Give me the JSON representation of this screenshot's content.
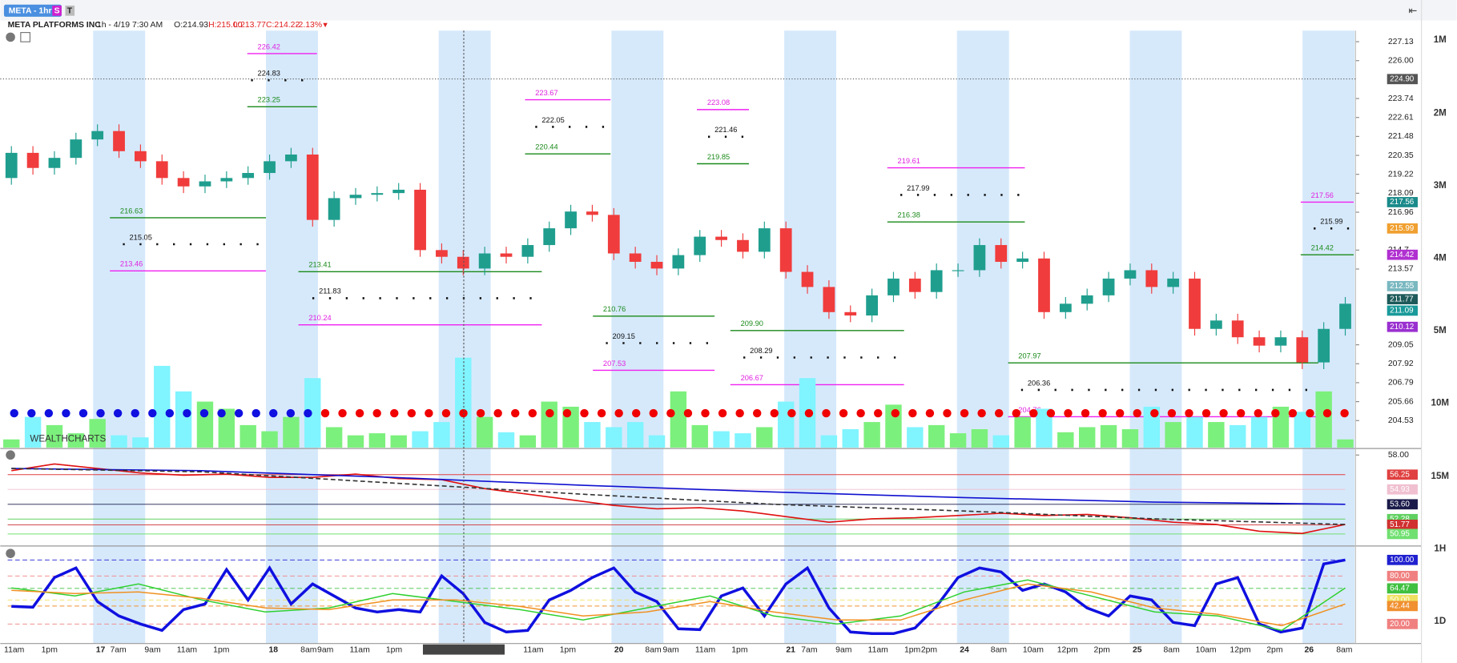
{
  "header": {
    "symbol": "META - 1hr",
    "badges": [
      "S",
      "T"
    ],
    "name": "META PLATFORMS INC",
    "interval": "1h - 4/19 7:30 AM",
    "open": "O:214.93",
    "high": "H:215.00",
    "low": "L:213.77",
    "close": "C:214.22",
    "change": "-2.13%"
  },
  "watermark": "WEALTHCHARTS",
  "timeframes": [
    "1M",
    "2M",
    "3M",
    "4M",
    "5M",
    "10M",
    "15M",
    "1H",
    "1D"
  ],
  "time_labels": [
    "11am",
    "1pm",
    "17",
    "7am",
    "9am",
    "11am",
    "1pm",
    "18",
    "8am",
    "9am",
    "11am",
    "1pm",
    "4/19/2023 7:30:00 AM",
    "11am",
    "1pm",
    "20",
    "8am",
    "9am",
    "11am",
    "1pm",
    "21",
    "7am",
    "9am",
    "11am",
    "1pm",
    "2pm",
    "24",
    "8am",
    "10am",
    "12pm",
    "2pm",
    "25",
    "8am",
    "10am",
    "12pm",
    "2pm",
    "26",
    "8am"
  ],
  "price": {
    "ylim": [
      202.92,
      227.79
    ],
    "yticks": [
      227.13,
      {
        "value": 226,
        "label": "226.00"
      },
      223.74,
      222.61,
      221.48,
      220.35,
      219.22,
      218.09,
      216.96,
      214.7,
      213.57,
      209.05,
      207.92,
      206.79,
      205.66,
      204.53
    ],
    "tags": [
      {
        "value": 224.9,
        "label": "224.90",
        "color": "#555555"
      },
      {
        "value": 217.56,
        "color": "#1a8a8a"
      },
      {
        "value": 215.99,
        "color": "#f0a030"
      },
      {
        "value": 214.42,
        "color": "#b030d0"
      },
      {
        "value": 212.55,
        "color": "#7ab8c0"
      },
      {
        "value": 211.77,
        "color": "#1e5a5a"
      },
      {
        "value": 211.09,
        "color": "#1a9a9a"
      },
      {
        "value": 210.12,
        "color": "#9a30d0"
      }
    ],
    "ohlc": [
      [
        219.0,
        220.9,
        218.6,
        220.5
      ],
      [
        220.5,
        220.9,
        219.2,
        219.6
      ],
      [
        219.6,
        220.6,
        219.2,
        220.2
      ],
      [
        220.2,
        221.7,
        219.8,
        221.3
      ],
      [
        221.3,
        222.2,
        220.9,
        221.8
      ],
      [
        221.8,
        222.2,
        220.2,
        220.6
      ],
      [
        220.6,
        221.0,
        219.6,
        220.0
      ],
      [
        220.0,
        220.4,
        218.6,
        219.0
      ],
      [
        219.0,
        219.4,
        218.1,
        218.5
      ],
      [
        218.5,
        219.2,
        218.1,
        218.8
      ],
      [
        218.8,
        219.4,
        218.4,
        219.0
      ],
      [
        219.0,
        219.7,
        218.6,
        219.3
      ],
      [
        219.3,
        220.4,
        218.9,
        220.0
      ],
      [
        220.0,
        220.8,
        219.6,
        220.4
      ],
      [
        220.4,
        220.8,
        216.1,
        216.5
      ],
      [
        216.5,
        218.2,
        216.1,
        217.8
      ],
      [
        217.8,
        218.4,
        217.4,
        218.0
      ],
      [
        218.0,
        218.5,
        217.6,
        218.1
      ],
      [
        218.1,
        218.7,
        217.7,
        218.3
      ],
      [
        218.3,
        218.7,
        214.3,
        214.7
      ],
      [
        214.7,
        215.1,
        213.9,
        214.3
      ],
      [
        214.3,
        214.7,
        213.2,
        213.6
      ],
      [
        213.6,
        214.9,
        213.2,
        214.5
      ],
      [
        214.5,
        214.9,
        213.9,
        214.3
      ],
      [
        214.3,
        215.4,
        213.9,
        215.0
      ],
      [
        215.0,
        216.4,
        214.6,
        216.0
      ],
      [
        216.0,
        217.4,
        215.6,
        217.0
      ],
      [
        217.0,
        217.4,
        216.4,
        216.8
      ],
      [
        216.8,
        217.2,
        214.1,
        214.5
      ],
      [
        214.5,
        214.9,
        213.6,
        214.0
      ],
      [
        214.0,
        214.4,
        213.2,
        213.6
      ],
      [
        213.6,
        214.8,
        213.2,
        214.4
      ],
      [
        214.4,
        215.9,
        214.0,
        215.5
      ],
      [
        215.5,
        215.9,
        214.9,
        215.3
      ],
      [
        215.3,
        215.7,
        214.2,
        214.6
      ],
      [
        214.6,
        216.4,
        214.2,
        216.0
      ],
      [
        216.0,
        216.4,
        213.0,
        213.4
      ],
      [
        213.4,
        213.8,
        212.1,
        212.5
      ],
      [
        212.5,
        212.9,
        210.6,
        211.0
      ],
      [
        211.0,
        211.4,
        210.4,
        210.8
      ],
      [
        210.8,
        212.4,
        210.4,
        212.0
      ],
      [
        212.0,
        213.4,
        211.6,
        213.0
      ],
      [
        213.0,
        213.4,
        211.8,
        212.2
      ],
      [
        212.2,
        213.9,
        211.8,
        213.5
      ],
      [
        213.5,
        213.9,
        213.1,
        213.5
      ],
      [
        213.5,
        215.4,
        213.1,
        215.0
      ],
      [
        215.0,
        215.4,
        213.6,
        214.0
      ],
      [
        214.0,
        214.6,
        213.6,
        214.2
      ],
      [
        214.2,
        214.6,
        210.6,
        211.0
      ],
      [
        211.0,
        211.9,
        210.6,
        211.5
      ],
      [
        211.5,
        212.4,
        211.1,
        212.0
      ],
      [
        212.0,
        213.4,
        211.6,
        213.0
      ],
      [
        213.0,
        213.9,
        212.6,
        213.5
      ],
      [
        213.5,
        213.9,
        212.1,
        212.5
      ],
      [
        212.5,
        213.4,
        212.1,
        213.0
      ],
      [
        213.0,
        213.4,
        209.6,
        210.0
      ],
      [
        210.0,
        210.9,
        209.6,
        210.5
      ],
      [
        210.5,
        210.9,
        209.1,
        209.5
      ],
      [
        209.5,
        209.9,
        208.6,
        209.0
      ],
      [
        209.0,
        209.9,
        208.6,
        209.5
      ],
      [
        209.5,
        209.9,
        207.6,
        208.0
      ],
      [
        208.0,
        210.4,
        207.6,
        210.0
      ],
      [
        210.0,
        211.9,
        209.6,
        211.5
      ]
    ],
    "volume": [
      8,
      30,
      22,
      14,
      28,
      12,
      10,
      80,
      55,
      45,
      38,
      22,
      16,
      30,
      68,
      20,
      12,
      14,
      12,
      16,
      25,
      88,
      30,
      15,
      12,
      45,
      40,
      25,
      20,
      25,
      12,
      55,
      22,
      16,
      14,
      20,
      45,
      68,
      12,
      18,
      25,
      42,
      20,
      22,
      14,
      18,
      12,
      30,
      38,
      15,
      20,
      22,
      18,
      40,
      25,
      30,
      25,
      22,
      30,
      40,
      35,
      55,
      8
    ],
    "levels": [
      {
        "value": 226.42,
        "kind": "pink"
      },
      {
        "value": 224.83,
        "kind": "black"
      },
      {
        "value": 223.25,
        "kind": "green"
      },
      {
        "value": 223.67,
        "kind": "pink"
      },
      {
        "value": 222.05,
        "kind": "black"
      },
      {
        "value": 220.44,
        "kind": "green"
      },
      {
        "value": 223.08,
        "kind": "pink"
      },
      {
        "value": 221.46,
        "kind": "black"
      },
      {
        "value": 219.85,
        "kind": "green"
      },
      {
        "value": 219.61,
        "kind": "pink"
      },
      {
        "value": 217.99,
        "kind": "black"
      },
      {
        "value": 216.38,
        "kind": "green"
      },
      {
        "value": 217.56,
        "kind": "pink"
      },
      {
        "value": 215.99,
        "kind": "black"
      },
      {
        "value": 214.42,
        "kind": "green"
      },
      {
        "value": 216.63,
        "kind": "green"
      },
      {
        "value": 215.05,
        "kind": "black"
      },
      {
        "value": 213.46,
        "kind": "pink"
      },
      {
        "value": 213.41,
        "kind": "green"
      },
      {
        "value": 211.83,
        "kind": "black"
      },
      {
        "value": 210.24,
        "kind": "pink"
      },
      {
        "value": 210.76,
        "kind": "green"
      },
      {
        "value": 209.15,
        "kind": "black"
      },
      {
        "value": 207.53,
        "kind": "pink"
      },
      {
        "value": 209.9,
        "label": "209.90",
        "kind": "green"
      },
      {
        "value": 208.29,
        "kind": "black"
      },
      {
        "value": 206.67,
        "kind": "pink"
      },
      {
        "value": 207.97,
        "kind": "green"
      },
      {
        "value": 206.36,
        "kind": "black"
      },
      {
        "value": 204.76,
        "kind": "pink"
      }
    ]
  },
  "panel1": {
    "ylim": [
      49.96,
      58.5
    ],
    "yticks": [
      {
        "value": 58,
        "label": "58.00"
      }
    ],
    "tags": [
      {
        "value": 56.25,
        "color": "#e04040"
      },
      {
        "value": 54.93,
        "color": "#f0c0d0"
      },
      {
        "value": 53.6,
        "label": "53.60",
        "color": "#1a1a4a"
      },
      {
        "value": 52.28,
        "color": "#60d060"
      },
      {
        "value": 51.77,
        "color": "#d03030"
      },
      {
        "value": 50.95,
        "color": "#70e070"
      }
    ],
    "series": [
      {
        "color": "#e01010",
        "values": [
          56.6,
          57.2,
          56.8,
          56.4,
          56.2,
          56.3,
          56.0,
          56.0,
          56.3,
          55.9,
          55.8,
          55.0,
          54.5,
          54.0,
          53.5,
          53.2,
          53.3,
          53.0,
          52.5,
          52.0,
          52.3,
          52.4,
          52.6,
          52.8,
          52.6,
          52.7,
          52.4,
          52.0,
          51.8,
          51.2,
          51.0,
          51.8
        ]
      },
      {
        "color": "#1010d0",
        "values": [
          56.8,
          56.6,
          56.0,
          55.3,
          54.7,
          54.2,
          53.8,
          53.6
        ]
      },
      {
        "color": "#333333",
        "dashed": true,
        "values": [
          56.8,
          56.5,
          55.5,
          54.5,
          53.6,
          53.0,
          52.3,
          51.8
        ]
      }
    ]
  },
  "panel2": {
    "ylim": [
      -3.2,
      115.1
    ],
    "tags": [
      {
        "value": 100,
        "label": "100.00",
        "color": "#2020d0"
      },
      {
        "value": 80,
        "label": "80.00",
        "color": "#f08080"
      },
      {
        "value": 64.47,
        "color": "#40c040"
      },
      {
        "value": 50,
        "label": "50.00",
        "color": "#f0e060"
      },
      {
        "value": 42.44,
        "color": "#f09030"
      },
      {
        "value": 20,
        "label": "20.00",
        "color": "#f08080"
      }
    ],
    "series": [
      {
        "color": "#1010e0",
        "width": 3,
        "values": [
          42,
          41,
          78,
          90,
          48,
          30,
          20,
          12,
          38,
          45,
          88,
          50,
          90,
          45,
          70,
          55,
          40,
          35,
          38,
          35,
          80,
          58,
          22,
          10,
          12,
          50,
          62,
          78,
          90,
          60,
          48,
          14,
          13,
          55,
          65,
          30,
          70,
          90,
          40,
          10,
          8,
          8,
          15,
          42,
          78,
          90,
          85,
          62,
          70,
          60,
          40,
          30,
          55,
          50,
          22,
          18,
          70,
          78,
          20,
          10,
          15,
          95,
          100
        ]
      },
      {
        "color": "#30d030",
        "width": 1.3,
        "values": [
          65,
          55,
          70,
          50,
          35,
          40,
          58,
          48,
          38,
          25,
          40,
          55,
          30,
          20,
          30,
          60,
          75,
          55,
          35,
          30,
          12,
          65
        ]
      },
      {
        "color": "#f09020",
        "width": 1.3,
        "values": [
          62,
          58,
          60,
          52,
          40,
          38,
          50,
          50,
          42,
          30,
          35,
          48,
          35,
          25,
          25,
          50,
          70,
          60,
          40,
          32,
          18,
          45
        ]
      }
    ]
  }
}
